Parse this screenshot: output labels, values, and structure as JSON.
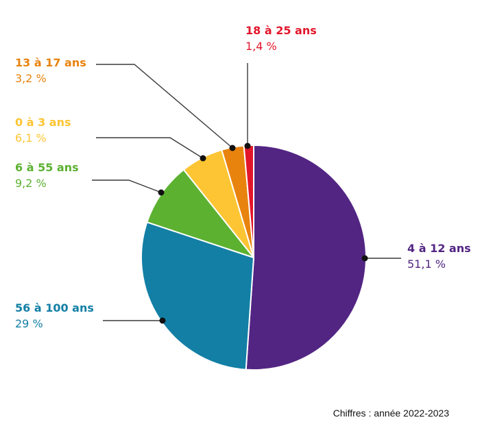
{
  "chart_data": {
    "type": "pie",
    "title": "",
    "note": "Chiffres : année 2022-2023",
    "slices": [
      {
        "label": "4 à 12 ans",
        "value_text": "51,1 %",
        "value": 51.1,
        "color": "#522583"
      },
      {
        "label": "56 à 100 ans",
        "value_text": "29 %",
        "value": 29.0,
        "color": "#137fa5"
      },
      {
        "label": "6 à 55 ans",
        "value_text": "9,2 %",
        "value": 9.2,
        "color": "#5cb131"
      },
      {
        "label": "0 à 3 ans",
        "value_text": "6,1 %",
        "value": 6.1,
        "color": "#fdc533"
      },
      {
        "label": "13 à 17 ans",
        "value_text": "3,2 %",
        "value": 3.2,
        "color": "#e8830e"
      },
      {
        "label": "18 à 25 ans",
        "value_text": "1,4 %",
        "value": 1.4,
        "color": "#e2162b"
      }
    ],
    "start_direction": "top",
    "direction": "clockwise"
  }
}
